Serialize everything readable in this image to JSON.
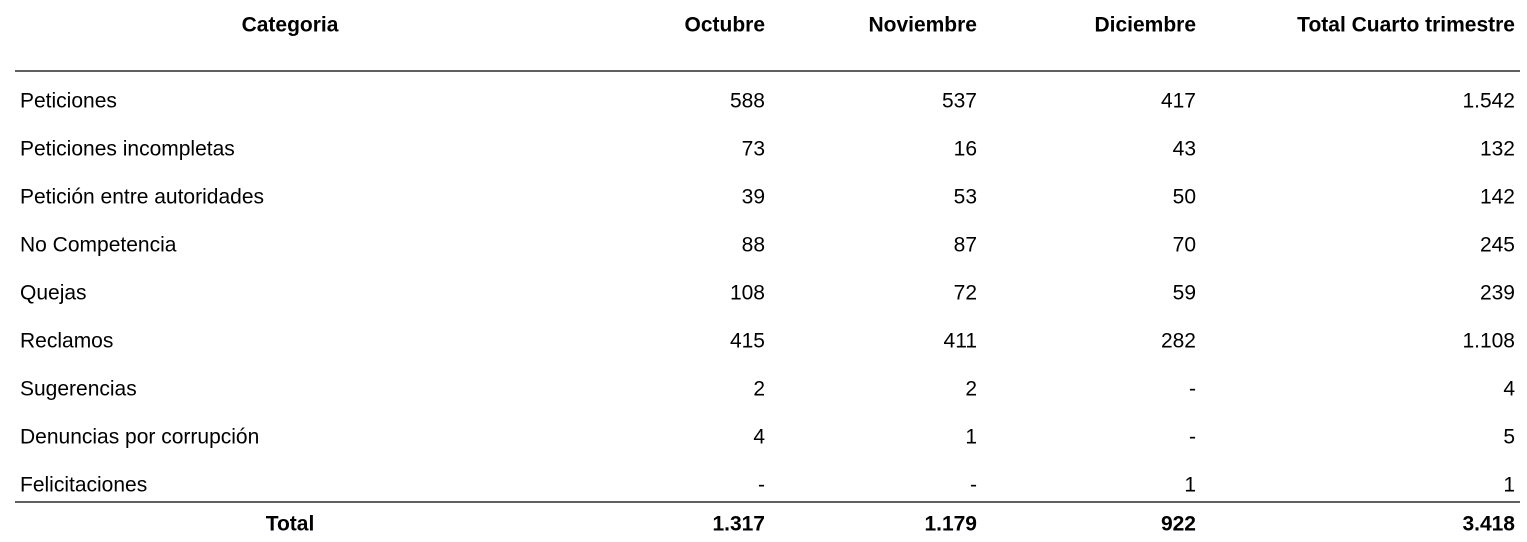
{
  "table": {
    "columns": [
      "Categoria",
      "Octubre",
      "Noviembre",
      "Diciembre",
      "Total Cuarto trimestre"
    ],
    "rows": [
      [
        "Peticiones",
        "588",
        "537",
        "417",
        "1.542"
      ],
      [
        "Peticiones incompletas",
        "73",
        "16",
        "43",
        "132"
      ],
      [
        "Petición entre autoridades",
        "39",
        "53",
        "50",
        "142"
      ],
      [
        "No Competencia",
        "88",
        "87",
        "70",
        "245"
      ],
      [
        "Quejas",
        "108",
        "72",
        "59",
        "239"
      ],
      [
        "Reclamos",
        "415",
        "411",
        "282",
        "1.108"
      ],
      [
        "Sugerencias",
        "2",
        "2",
        "-",
        "4"
      ],
      [
        "Denuncias por corrupción",
        "4",
        "1",
        "-",
        "5"
      ],
      [
        "Felicitaciones",
        "-",
        "-",
        "1",
        "1"
      ]
    ],
    "total": [
      "Total",
      "1.317",
      "1.179",
      "922",
      "3.418"
    ]
  }
}
